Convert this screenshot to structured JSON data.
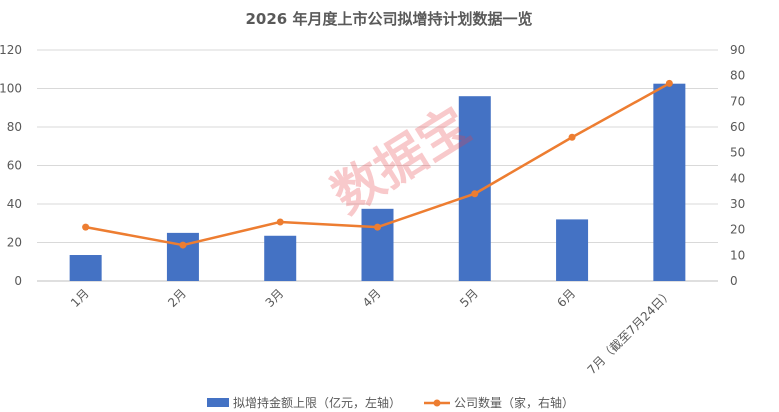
{
  "chart_data": {
    "type": "bar+line",
    "title": "2026 年月度上市公司拟增持计划数据一览",
    "watermark": "数据宝",
    "categories": [
      "1月",
      "2月",
      "3月",
      "4月",
      "5月",
      "6月",
      "7月（截至7月24日）"
    ],
    "series": [
      {
        "name": "拟增持金额上限（亿元，左轴）",
        "type": "bar",
        "axis": "left",
        "color": "#4472C4",
        "values": [
          13.5,
          25,
          23.5,
          37.5,
          96,
          32,
          102.5
        ]
      },
      {
        "name": "公司数量（家，右轴）",
        "type": "line",
        "axis": "right",
        "color": "#ED7D31",
        "values": [
          21,
          14,
          23,
          21,
          34,
          56,
          77
        ]
      }
    ],
    "y_left": {
      "min": 0,
      "max": 120,
      "step": 20,
      "ticks": [
        "0",
        "20",
        "40",
        "60",
        "80",
        "100",
        "120"
      ]
    },
    "y_right": {
      "min": 0,
      "max": 90,
      "step": 10,
      "ticks": [
        "0",
        "10",
        "20",
        "30",
        "40",
        "50",
        "60",
        "70",
        "80",
        "90"
      ]
    },
    "grid": true,
    "legend_position": "bottom"
  }
}
